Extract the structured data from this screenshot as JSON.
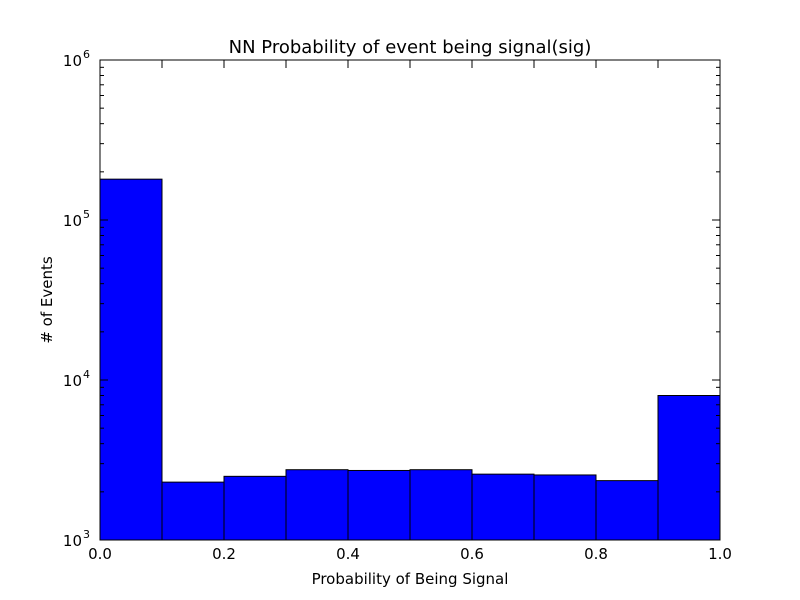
{
  "chart_data": {
    "type": "bar",
    "title": "NN Probability of event being signal(sig)",
    "xlabel": "Probability of Being Signal",
    "ylabel": "# of Events",
    "y_scale": "log",
    "xlim": [
      0.0,
      1.0
    ],
    "ylim": [
      1000,
      1000000
    ],
    "grid": false,
    "x_ticks": [
      "0.0",
      "0.2",
      "0.4",
      "0.6",
      "0.8",
      "1.0"
    ],
    "y_ticks": [
      {
        "base": "10",
        "exp": "3",
        "value": 1000
      },
      {
        "base": "10",
        "exp": "4",
        "value": 10000
      },
      {
        "base": "10",
        "exp": "5",
        "value": 100000
      },
      {
        "base": "10",
        "exp": "6",
        "value": 1000000
      }
    ],
    "bins": [
      {
        "x0": 0.0,
        "x1": 0.1,
        "value": 180000
      },
      {
        "x0": 0.1,
        "x1": 0.2,
        "value": 2300
      },
      {
        "x0": 0.2,
        "x1": 0.3,
        "value": 2500
      },
      {
        "x0": 0.3,
        "x1": 0.4,
        "value": 2750
      },
      {
        "x0": 0.4,
        "x1": 0.5,
        "value": 2720
      },
      {
        "x0": 0.5,
        "x1": 0.6,
        "value": 2750
      },
      {
        "x0": 0.6,
        "x1": 0.7,
        "value": 2580
      },
      {
        "x0": 0.7,
        "x1": 0.8,
        "value": 2550
      },
      {
        "x0": 0.8,
        "x1": 0.9,
        "value": 2350
      },
      {
        "x0": 0.9,
        "x1": 1.0,
        "value": 8000
      }
    ],
    "bar_color": "#0000ff",
    "edge_color": "#000000"
  }
}
